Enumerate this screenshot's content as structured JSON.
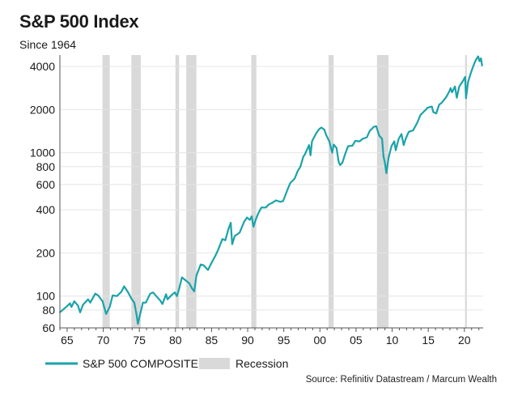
{
  "header": {
    "title": "S&P 500 Index",
    "subtitle": "Since 1964"
  },
  "footer": {
    "source": "Source: Refinitiv Datastream / Marcum Wealth"
  },
  "chart_data": {
    "type": "line",
    "title": "S&P 500 Index",
    "subtitle": "Since 1964",
    "xlabel": "",
    "ylabel": "",
    "y_scale": "log",
    "xlim": [
      1964.0,
      2022.6
    ],
    "ylim": [
      60,
      4800
    ],
    "y_ticks": [
      60,
      80,
      100,
      200,
      400,
      600,
      800,
      1000,
      2000,
      4000
    ],
    "x_ticks": [
      {
        "year": 1965,
        "label": "65"
      },
      {
        "year": 1970,
        "label": "70"
      },
      {
        "year": 1975,
        "label": "75"
      },
      {
        "year": 1980,
        "label": "80"
      },
      {
        "year": 1985,
        "label": "85"
      },
      {
        "year": 1990,
        "label": "90"
      },
      {
        "year": 1995,
        "label": "95"
      },
      {
        "year": 2000,
        "label": "00"
      },
      {
        "year": 2005,
        "label": "05"
      },
      {
        "year": 2010,
        "label": "10"
      },
      {
        "year": 2015,
        "label": "15"
      },
      {
        "year": 2020,
        "label": "20"
      }
    ],
    "grid": {
      "horizontal": true,
      "vertical": false
    },
    "legend": {
      "placement": "bottom-left",
      "entries": [
        {
          "label": "S&P 500 COMPOSITE",
          "kind": "line",
          "color": "#1aa3a9"
        },
        {
          "label": "Recession",
          "kind": "box",
          "color": "#d9d9d9"
        }
      ]
    },
    "recessions": [
      [
        1969.9,
        1970.9
      ],
      [
        1973.9,
        1975.2
      ],
      [
        1980.0,
        1980.5
      ],
      [
        1981.5,
        1982.9
      ],
      [
        1990.5,
        1991.2
      ],
      [
        2001.2,
        2001.9
      ],
      [
        2007.9,
        2009.5
      ],
      [
        2020.1,
        2020.35
      ]
    ],
    "series": [
      {
        "name": "S&P 500 COMPOSITE",
        "color": "#1aa3a9",
        "points": [
          [
            1964.0,
            77
          ],
          [
            1964.5,
            81
          ],
          [
            1965.0,
            85
          ],
          [
            1965.4,
            89
          ],
          [
            1965.6,
            84
          ],
          [
            1966.0,
            92
          ],
          [
            1966.5,
            86
          ],
          [
            1966.8,
            77
          ],
          [
            1967.2,
            87
          ],
          [
            1967.9,
            95
          ],
          [
            1968.2,
            90
          ],
          [
            1968.9,
            104
          ],
          [
            1969.3,
            101
          ],
          [
            1969.9,
            92
          ],
          [
            1970.4,
            75
          ],
          [
            1970.9,
            84
          ],
          [
            1971.3,
            101
          ],
          [
            1971.9,
            100
          ],
          [
            1972.5,
            107
          ],
          [
            1972.9,
            117
          ],
          [
            1973.5,
            105
          ],
          [
            1973.9,
            96
          ],
          [
            1974.3,
            90
          ],
          [
            1974.6,
            75
          ],
          [
            1974.8,
            64
          ],
          [
            1975.0,
            71
          ],
          [
            1975.5,
            90
          ],
          [
            1975.9,
            90
          ],
          [
            1976.5,
            104
          ],
          [
            1976.9,
            106
          ],
          [
            1977.5,
            98
          ],
          [
            1977.9,
            93
          ],
          [
            1978.2,
            88
          ],
          [
            1978.7,
            103
          ],
          [
            1978.9,
            95
          ],
          [
            1979.5,
            102
          ],
          [
            1979.9,
            106
          ],
          [
            1980.2,
            100
          ],
          [
            1980.5,
            112
          ],
          [
            1980.9,
            135
          ],
          [
            1981.3,
            130
          ],
          [
            1981.9,
            123
          ],
          [
            1982.3,
            113
          ],
          [
            1982.6,
            108
          ],
          [
            1982.9,
            139
          ],
          [
            1983.5,
            166
          ],
          [
            1983.9,
            164
          ],
          [
            1984.5,
            152
          ],
          [
            1984.9,
            167
          ],
          [
            1985.5,
            190
          ],
          [
            1985.9,
            210
          ],
          [
            1986.5,
            250
          ],
          [
            1986.9,
            245
          ],
          [
            1987.3,
            290
          ],
          [
            1987.65,
            325
          ],
          [
            1987.85,
            230
          ],
          [
            1988.2,
            262
          ],
          [
            1988.9,
            278
          ],
          [
            1989.5,
            330
          ],
          [
            1989.9,
            353
          ],
          [
            1990.3,
            340
          ],
          [
            1990.55,
            360
          ],
          [
            1990.8,
            305
          ],
          [
            1991.1,
            340
          ],
          [
            1991.5,
            380
          ],
          [
            1991.9,
            415
          ],
          [
            1992.5,
            415
          ],
          [
            1992.9,
            435
          ],
          [
            1993.5,
            450
          ],
          [
            1993.9,
            465
          ],
          [
            1994.5,
            455
          ],
          [
            1994.9,
            460
          ],
          [
            1995.5,
            550
          ],
          [
            1995.9,
            615
          ],
          [
            1996.5,
            660
          ],
          [
            1996.9,
            740
          ],
          [
            1997.3,
            800
          ],
          [
            1997.7,
            940
          ],
          [
            1997.9,
            970
          ],
          [
            1998.5,
            1130
          ],
          [
            1998.7,
            960
          ],
          [
            1998.9,
            1200
          ],
          [
            1999.5,
            1370
          ],
          [
            1999.9,
            1460
          ],
          [
            2000.2,
            1500
          ],
          [
            2000.6,
            1450
          ],
          [
            2000.9,
            1320
          ],
          [
            2001.3,
            1200
          ],
          [
            2001.7,
            1000
          ],
          [
            2001.9,
            1140
          ],
          [
            2002.3,
            1080
          ],
          [
            2002.6,
            860
          ],
          [
            2002.8,
            820
          ],
          [
            2003.1,
            850
          ],
          [
            2003.5,
            980
          ],
          [
            2003.9,
            1110
          ],
          [
            2004.5,
            1120
          ],
          [
            2004.9,
            1210
          ],
          [
            2005.5,
            1200
          ],
          [
            2005.9,
            1250
          ],
          [
            2006.5,
            1280
          ],
          [
            2006.9,
            1420
          ],
          [
            2007.5,
            1520
          ],
          [
            2007.8,
            1530
          ],
          [
            2008.2,
            1320
          ],
          [
            2008.6,
            1250
          ],
          [
            2008.8,
            950
          ],
          [
            2009.0,
            850
          ],
          [
            2009.2,
            720
          ],
          [
            2009.5,
            920
          ],
          [
            2009.9,
            1110
          ],
          [
            2010.3,
            1200
          ],
          [
            2010.5,
            1040
          ],
          [
            2010.9,
            1250
          ],
          [
            2011.3,
            1350
          ],
          [
            2011.6,
            1130
          ],
          [
            2011.9,
            1260
          ],
          [
            2012.3,
            1400
          ],
          [
            2012.9,
            1430
          ],
          [
            2013.5,
            1630
          ],
          [
            2013.9,
            1830
          ],
          [
            2014.5,
            1960
          ],
          [
            2014.9,
            2060
          ],
          [
            2015.5,
            2100
          ],
          [
            2015.7,
            1920
          ],
          [
            2016.1,
            1880
          ],
          [
            2016.5,
            2160
          ],
          [
            2016.9,
            2240
          ],
          [
            2017.5,
            2450
          ],
          [
            2017.9,
            2670
          ],
          [
            2018.1,
            2820
          ],
          [
            2018.3,
            2640
          ],
          [
            2018.7,
            2900
          ],
          [
            2018.95,
            2420
          ],
          [
            2019.3,
            2900
          ],
          [
            2019.9,
            3230
          ],
          [
            2020.1,
            3380
          ],
          [
            2020.22,
            2400
          ],
          [
            2020.5,
            3100
          ],
          [
            2020.9,
            3600
          ],
          [
            2021.3,
            4100
          ],
          [
            2021.6,
            4450
          ],
          [
            2021.9,
            4700
          ],
          [
            2022.1,
            4350
          ],
          [
            2022.3,
            4550
          ],
          [
            2022.45,
            4050
          ]
        ]
      }
    ]
  }
}
